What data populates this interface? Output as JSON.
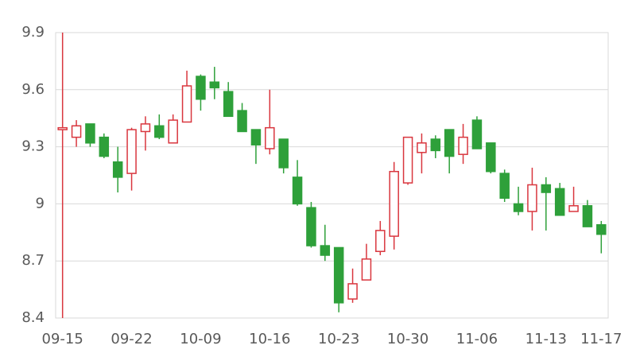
{
  "chart_data": {
    "type": "candlestick",
    "categories": [
      "09-15",
      null,
      null,
      null,
      null,
      "09-22",
      null,
      null,
      null,
      null,
      "10-09",
      null,
      null,
      null,
      null,
      "10-16",
      null,
      null,
      null,
      null,
      "10-23",
      null,
      null,
      null,
      null,
      "10-30",
      null,
      null,
      null,
      null,
      "11-06",
      null,
      null,
      null,
      null,
      "11-13",
      null,
      null,
      null,
      "11-17"
    ],
    "open": [
      9.39,
      9.35,
      9.42,
      9.35,
      9.22,
      9.16,
      9.38,
      9.41,
      9.32,
      9.43,
      9.67,
      9.64,
      9.59,
      9.49,
      9.39,
      9.29,
      9.34,
      9.14,
      8.98,
      8.78,
      8.77,
      8.5,
      8.6,
      8.75,
      8.83,
      9.11,
      9.27,
      9.34,
      9.39,
      9.26,
      9.44,
      9.32,
      9.16,
      9.0,
      8.96,
      9.1,
      9.08,
      8.96,
      8.99,
      8.89
    ],
    "high": [
      9.9,
      9.44,
      9.42,
      9.37,
      9.3,
      9.4,
      9.46,
      9.47,
      9.47,
      9.7,
      9.68,
      9.72,
      9.64,
      9.53,
      9.39,
      9.6,
      9.34,
      9.23,
      9.01,
      8.89,
      8.77,
      8.66,
      8.79,
      8.91,
      9.22,
      9.35,
      9.37,
      9.36,
      9.39,
      9.42,
      9.46,
      9.32,
      9.18,
      9.09,
      9.19,
      9.14,
      9.11,
      9.09,
      9.02,
      8.91
    ],
    "low": [
      8.4,
      9.3,
      9.3,
      9.24,
      9.06,
      9.07,
      9.28,
      9.34,
      9.32,
      9.43,
      9.49,
      9.55,
      9.46,
      9.38,
      9.21,
      9.26,
      9.16,
      8.99,
      8.77,
      8.7,
      8.43,
      8.48,
      8.6,
      8.73,
      8.76,
      9.1,
      9.16,
      9.24,
      9.16,
      9.21,
      9.29,
      9.16,
      9.01,
      8.94,
      8.86,
      8.86,
      8.94,
      8.96,
      8.88,
      8.74
    ],
    "close": [
      9.4,
      9.41,
      9.32,
      9.25,
      9.14,
      9.39,
      9.42,
      9.35,
      9.44,
      9.62,
      9.55,
      9.61,
      9.46,
      9.38,
      9.31,
      9.4,
      9.19,
      9.0,
      8.78,
      8.73,
      8.48,
      8.58,
      8.71,
      8.86,
      9.17,
      9.35,
      9.32,
      9.28,
      9.25,
      9.35,
      9.29,
      9.17,
      9.03,
      8.96,
      9.1,
      9.06,
      8.94,
      8.99,
      8.88,
      8.84
    ],
    "up_color": "#d9363e",
    "down_color": "#2ea03a",
    "ylim": [
      8.4,
      9.9
    ],
    "yticks": [
      8.4,
      8.7,
      9,
      9.3,
      9.6,
      9.9
    ],
    "grid": true
  }
}
